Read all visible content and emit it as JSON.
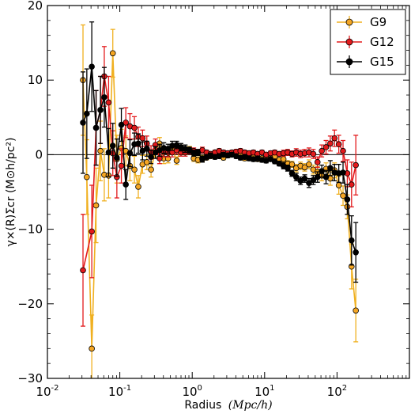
{
  "chart_data": {
    "type": "scatter",
    "xlabel_text": "Radius",
    "xlabel_unit": "(Mpc/h)",
    "ylabel": "γ×(R)Σcr (M⊙h/pc²)",
    "xscale": "log",
    "xlim": [
      0.01,
      1000
    ],
    "ylim": [
      -30,
      20
    ],
    "x_ticks": [
      0.01,
      0.1,
      1,
      10,
      100
    ],
    "x_tick_labels": [
      {
        "base": "10",
        "exp": "-2"
      },
      {
        "base": "10",
        "exp": "-1"
      },
      {
        "base": "10",
        "exp": "0"
      },
      {
        "base": "10",
        "exp": "1"
      },
      {
        "base": "10",
        "exp": "2"
      }
    ],
    "y_ticks": [
      -30,
      -20,
      -10,
      0,
      10,
      20
    ],
    "y_tick_labels": [
      "−30",
      "−20",
      "−10",
      "0",
      "10",
      "20"
    ],
    "zero_line": true,
    "grid": false,
    "legend_position": "top-right",
    "series": [
      {
        "name": "G9",
        "color": "#f5a623",
        "line_color": "#f0b020",
        "points": [
          [
            0.031,
            10.0,
            7.4
          ],
          [
            0.035,
            -3.0,
            5.0
          ],
          [
            0.041,
            -26.0,
            4.5
          ],
          [
            0.047,
            -6.8,
            5.0
          ],
          [
            0.054,
            0.5,
            4.0
          ],
          [
            0.061,
            -2.7,
            3.5
          ],
          [
            0.07,
            -2.8,
            3.0
          ],
          [
            0.08,
            13.6,
            3.2
          ],
          [
            0.091,
            -0.6,
            3.2
          ],
          [
            0.105,
            0.9,
            2.5
          ],
          [
            0.121,
            0.5,
            2.0
          ],
          [
            0.138,
            -1.5,
            2.0
          ],
          [
            0.159,
            -2.0,
            1.8
          ],
          [
            0.18,
            -4.3,
            1.5
          ],
          [
            0.206,
            -1.3,
            1.2
          ],
          [
            0.236,
            -1.0,
            1.0
          ],
          [
            0.27,
            -2.0,
            1.0
          ],
          [
            0.31,
            0.5,
            0.8
          ],
          [
            0.354,
            1.5,
            0.8
          ],
          [
            0.405,
            -0.5,
            0.7
          ],
          [
            0.464,
            -0.5,
            0.6
          ],
          [
            0.53,
            0.8,
            0.6
          ],
          [
            0.61,
            -0.8,
            0.5
          ],
          [
            0.7,
            0.8,
            0.5
          ],
          [
            0.8,
            0.5,
            0.5
          ],
          [
            0.92,
            0.7,
            0.4
          ],
          [
            1.05,
            -0.5,
            0.4
          ],
          [
            1.2,
            -0.7,
            0.4
          ],
          [
            1.38,
            -0.5,
            0.4
          ],
          [
            1.58,
            -0.4,
            0.3
          ],
          [
            1.8,
            -0.2,
            0.3
          ],
          [
            2.06,
            0.3,
            0.3
          ],
          [
            2.36,
            0.0,
            0.3
          ],
          [
            2.7,
            -0.4,
            0.3
          ],
          [
            3.1,
            -0.1,
            0.3
          ],
          [
            3.54,
            0.1,
            0.3
          ],
          [
            4.05,
            0.0,
            0.3
          ],
          [
            4.64,
            0.0,
            0.3
          ],
          [
            5.3,
            -0.5,
            0.3
          ],
          [
            6.1,
            -0.3,
            0.3
          ],
          [
            7.0,
            -0.4,
            0.3
          ],
          [
            8.0,
            -0.6,
            0.3
          ],
          [
            9.2,
            -0.5,
            0.3
          ],
          [
            10.5,
            -0.3,
            0.3
          ],
          [
            12.1,
            -0.4,
            0.3
          ],
          [
            13.8,
            -0.3,
            0.3
          ],
          [
            15.9,
            -0.7,
            0.3
          ],
          [
            18.2,
            -0.6,
            0.4
          ],
          [
            20.8,
            -1.2,
            0.4
          ],
          [
            23.9,
            -1.3,
            0.4
          ],
          [
            27.3,
            -1.8,
            0.5
          ],
          [
            31.3,
            -1.5,
            0.5
          ],
          [
            35.8,
            -1.7,
            0.5
          ],
          [
            41.0,
            -1.3,
            0.6
          ],
          [
            47.0,
            -2.0,
            0.6
          ],
          [
            53.8,
            -2.3,
            0.7
          ],
          [
            61.6,
            -2.8,
            0.7
          ],
          [
            70.5,
            -1.9,
            0.8
          ],
          [
            80.7,
            -3.2,
            0.9
          ],
          [
            92.4,
            -2.1,
            1.0
          ],
          [
            105.8,
            -4.1,
            1.2
          ],
          [
            121.1,
            -5.5,
            1.3
          ],
          [
            138.7,
            -7.0,
            1.6
          ],
          [
            158.8,
            -15.0,
            3.0
          ],
          [
            181.8,
            -20.9,
            4.2
          ]
        ]
      },
      {
        "name": "G12",
        "color": "#e31a1c",
        "line_color": "#e31a1c",
        "points": [
          [
            0.031,
            -15.5,
            7.5
          ],
          [
            0.041,
            -10.3,
            6.2
          ],
          [
            0.047,
            3.6,
            5.0
          ],
          [
            0.054,
            6.0,
            4.5
          ],
          [
            0.061,
            10.5,
            4.0
          ],
          [
            0.07,
            7.0,
            3.5
          ],
          [
            0.08,
            0.2,
            3.0
          ],
          [
            0.091,
            -3.0,
            2.8
          ],
          [
            0.105,
            -1.5,
            2.3
          ],
          [
            0.121,
            4.3,
            2.0
          ],
          [
            0.138,
            3.8,
            1.7
          ],
          [
            0.159,
            3.6,
            1.5
          ],
          [
            0.18,
            2.4,
            1.3
          ],
          [
            0.206,
            2.2,
            1.1
          ],
          [
            0.236,
            1.5,
            1.0
          ],
          [
            0.27,
            0.3,
            0.9
          ],
          [
            0.31,
            1.3,
            0.8
          ],
          [
            0.354,
            -0.5,
            0.7
          ],
          [
            0.405,
            0.4,
            0.7
          ],
          [
            0.464,
            0.3,
            0.6
          ],
          [
            0.53,
            0.3,
            0.6
          ],
          [
            0.61,
            0.6,
            0.5
          ],
          [
            0.7,
            0.3,
            0.5
          ],
          [
            0.8,
            0.3,
            0.5
          ],
          [
            0.92,
            0.5,
            0.4
          ],
          [
            1.05,
            0.5,
            0.4
          ],
          [
            1.2,
            0.3,
            0.4
          ],
          [
            1.38,
            0.6,
            0.4
          ],
          [
            1.58,
            0.3,
            0.3
          ],
          [
            1.8,
            0.1,
            0.3
          ],
          [
            2.06,
            0.3,
            0.3
          ],
          [
            2.36,
            0.5,
            0.3
          ],
          [
            2.7,
            0.3,
            0.3
          ],
          [
            3.1,
            0.2,
            0.3
          ],
          [
            3.54,
            0.3,
            0.3
          ],
          [
            4.05,
            0.4,
            0.3
          ],
          [
            4.64,
            0.5,
            0.3
          ],
          [
            5.3,
            0.3,
            0.3
          ],
          [
            6.1,
            0.2,
            0.3
          ],
          [
            7.0,
            0.3,
            0.3
          ],
          [
            8.0,
            0.1,
            0.3
          ],
          [
            9.2,
            0.3,
            0.3
          ],
          [
            10.5,
            0.0,
            0.3
          ],
          [
            12.1,
            0.2,
            0.3
          ],
          [
            13.8,
            0.3,
            0.3
          ],
          [
            15.9,
            0.1,
            0.3
          ],
          [
            18.2,
            0.2,
            0.4
          ],
          [
            20.8,
            0.3,
            0.4
          ],
          [
            23.9,
            0.1,
            0.4
          ],
          [
            27.3,
            0.3,
            0.5
          ],
          [
            31.3,
            0.1,
            0.5
          ],
          [
            35.8,
            0.2,
            0.5
          ],
          [
            41.0,
            0.3,
            0.6
          ],
          [
            47.0,
            0.1,
            0.6
          ],
          [
            53.8,
            -1.0,
            0.7
          ],
          [
            61.6,
            0.5,
            0.8
          ],
          [
            70.5,
            1.0,
            0.9
          ],
          [
            80.7,
            1.5,
            1.0
          ],
          [
            92.4,
            2.2,
            1.1
          ],
          [
            105.8,
            1.4,
            1.2
          ],
          [
            121.1,
            0.5,
            1.4
          ],
          [
            138.7,
            -2.5,
            1.8
          ],
          [
            158.8,
            -4.0,
            3.0
          ],
          [
            181.8,
            -1.4,
            4.0
          ]
        ]
      },
      {
        "name": "G15",
        "color": "#000000",
        "line_color": "#000000",
        "points": [
          [
            0.031,
            4.3,
            6.8
          ],
          [
            0.035,
            5.5,
            6.0
          ],
          [
            0.041,
            11.8,
            6.0
          ],
          [
            0.047,
            3.6,
            5.0
          ],
          [
            0.054,
            6.0,
            4.5
          ],
          [
            0.061,
            7.7,
            4.0
          ],
          [
            0.07,
            0.3,
            3.2
          ],
          [
            0.08,
            1.2,
            3.0
          ],
          [
            0.091,
            -0.4,
            2.5
          ],
          [
            0.105,
            4.0,
            2.2
          ],
          [
            0.121,
            -4.0,
            2.0
          ],
          [
            0.138,
            0.2,
            1.8
          ],
          [
            0.159,
            1.4,
            1.5
          ],
          [
            0.18,
            1.5,
            1.3
          ],
          [
            0.206,
            0.5,
            1.2
          ],
          [
            0.236,
            0.8,
            1.0
          ],
          [
            0.27,
            -0.3,
            0.9
          ],
          [
            0.31,
            0.3,
            0.8
          ],
          [
            0.354,
            0.6,
            0.8
          ],
          [
            0.405,
            0.9,
            0.7
          ],
          [
            0.464,
            0.8,
            0.6
          ],
          [
            0.53,
            1.2,
            0.6
          ],
          [
            0.61,
            1.3,
            0.5
          ],
          [
            0.7,
            1.0,
            0.5
          ],
          [
            0.8,
            0.8,
            0.5
          ],
          [
            0.92,
            0.6,
            0.4
          ],
          [
            1.05,
            0.2,
            0.4
          ],
          [
            1.2,
            0.3,
            0.4
          ],
          [
            1.38,
            -0.6,
            0.4
          ],
          [
            1.58,
            -0.3,
            0.3
          ],
          [
            1.8,
            -0.1,
            0.3
          ],
          [
            2.06,
            -0.3,
            0.3
          ],
          [
            2.36,
            -0.2,
            0.3
          ],
          [
            2.7,
            0.0,
            0.3
          ],
          [
            3.1,
            -0.1,
            0.3
          ],
          [
            3.54,
            0.0,
            0.3
          ],
          [
            4.05,
            -0.2,
            0.3
          ],
          [
            4.64,
            -0.4,
            0.3
          ],
          [
            5.3,
            -0.3,
            0.3
          ],
          [
            6.1,
            -0.5,
            0.3
          ],
          [
            7.0,
            -0.6,
            0.3
          ],
          [
            8.0,
            -0.5,
            0.3
          ],
          [
            9.2,
            -0.7,
            0.3
          ],
          [
            10.5,
            -0.8,
            0.3
          ],
          [
            12.1,
            -0.6,
            0.3
          ],
          [
            13.8,
            -0.9,
            0.3
          ],
          [
            15.9,
            -1.2,
            0.3
          ],
          [
            18.2,
            -1.5,
            0.4
          ],
          [
            20.8,
            -1.8,
            0.4
          ],
          [
            23.9,
            -2.5,
            0.4
          ],
          [
            27.3,
            -3.0,
            0.5
          ],
          [
            31.3,
            -3.5,
            0.5
          ],
          [
            35.8,
            -3.2,
            0.5
          ],
          [
            41.0,
            -3.8,
            0.6
          ],
          [
            47.0,
            -3.4,
            0.6
          ],
          [
            53.8,
            -3.0,
            0.7
          ],
          [
            61.6,
            -2.2,
            0.8
          ],
          [
            70.5,
            -3.0,
            0.9
          ],
          [
            80.7,
            -1.8,
            1.0
          ],
          [
            92.4,
            -2.4,
            1.1
          ],
          [
            105.8,
            -2.5,
            1.2
          ],
          [
            121.1,
            -2.4,
            1.4
          ],
          [
            138.7,
            -6.0,
            2.0
          ],
          [
            158.8,
            -11.5,
            3.3
          ],
          [
            181.8,
            -13.1,
            4.0
          ]
        ]
      }
    ]
  }
}
